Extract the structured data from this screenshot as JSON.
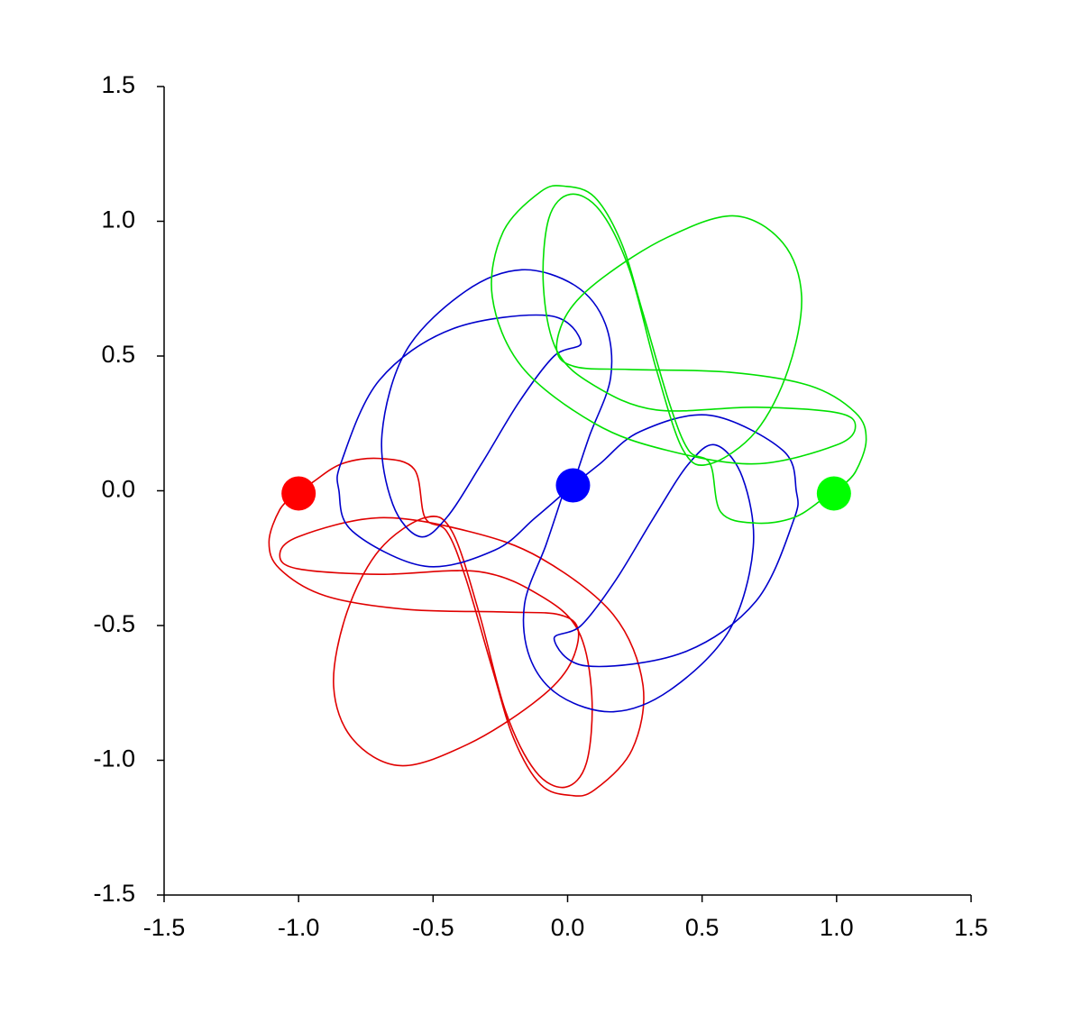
{
  "chart_data": {
    "type": "line",
    "xlim": [
      -1.5,
      1.5
    ],
    "ylim": [
      -1.5,
      1.5
    ],
    "xticks": [
      -1.5,
      {
        "value": -1,
        "label": "-1.0"
      },
      -0.5,
      {
        "value": 0,
        "label": "0.0"
      },
      0.5,
      {
        "value": 1,
        "label": "1.0"
      },
      1.5
    ],
    "yticks": [
      -1.5,
      {
        "value": -1,
        "label": "-1.0"
      },
      -0.5,
      {
        "value": 0,
        "label": "0.0"
      },
      0.5,
      {
        "value": 1,
        "label": "1.0"
      },
      1.5
    ],
    "series": [
      {
        "color": "#e00000",
        "x": [
          -1.01,
          -1.07,
          -1.11,
          -1.07,
          -0.9,
          -0.6,
          -0.23,
          -0.03,
          0.04,
          0.0,
          -0.13,
          -0.37,
          -0.62,
          -0.8,
          -0.87,
          -0.82,
          -0.7,
          -0.53,
          -0.43,
          -0.33,
          -0.23,
          -0.12,
          -0.01,
          0.07,
          0.09,
          0.04,
          -0.1,
          -0.33,
          -0.7,
          -1.0,
          -1.07,
          -1.0,
          -0.7,
          -0.37,
          -0.1,
          0.17,
          0.28,
          0.24,
          0.1,
          0.01,
          -0.1,
          -0.2,
          -0.28,
          -0.38,
          -0.45,
          -0.53,
          -0.57,
          -0.7,
          -0.84,
          -0.95,
          -1.01
        ],
        "values": [
          -0.01,
          -0.07,
          -0.19,
          -0.29,
          -0.39,
          -0.44,
          -0.45,
          -0.46,
          -0.52,
          -0.66,
          -0.79,
          -0.94,
          -1.02,
          -0.92,
          -0.72,
          -0.45,
          -0.22,
          -0.1,
          -0.15,
          -0.45,
          -0.82,
          -1.04,
          -1.1,
          -1.01,
          -0.76,
          -0.52,
          -0.39,
          -0.3,
          -0.31,
          -0.29,
          -0.24,
          -0.17,
          -0.1,
          -0.15,
          -0.25,
          -0.46,
          -0.72,
          -0.96,
          -1.11,
          -1.13,
          -1.09,
          -0.92,
          -0.66,
          -0.32,
          -0.15,
          -0.1,
          0.08,
          0.12,
          0.1,
          0.03,
          -0.01
        ]
      },
      {
        "color": "#0000cc",
        "x": [
          0.02,
          0.08,
          0.16,
          0.14,
          0.03,
          -0.17,
          -0.38,
          -0.6,
          -0.69,
          -0.65,
          -0.55,
          -0.45,
          -0.32,
          -0.18,
          -0.05,
          0.05,
          -0.07,
          -0.43,
          -0.7,
          -0.84,
          -0.85,
          -0.8,
          -0.53,
          -0.27,
          -0.12,
          0.02,
          0.12,
          0.27,
          0.53,
          0.8,
          0.85,
          0.84,
          0.7,
          0.43,
          0.07,
          -0.05,
          0.05,
          0.18,
          0.32,
          0.45,
          0.55,
          0.65,
          0.69,
          0.6,
          0.38,
          0.17,
          -0.03,
          -0.14,
          -0.16,
          -0.08,
          -0.02
        ],
        "values": [
          0.02,
          0.2,
          0.42,
          0.62,
          0.76,
          0.82,
          0.74,
          0.52,
          0.21,
          -0.05,
          -0.17,
          -0.1,
          0.1,
          0.33,
          0.5,
          0.55,
          0.65,
          0.6,
          0.41,
          0.11,
          0.0,
          -0.15,
          -0.28,
          -0.22,
          -0.1,
          0.02,
          0.1,
          0.22,
          0.28,
          0.15,
          0.0,
          -0.11,
          -0.41,
          -0.6,
          -0.65,
          -0.55,
          -0.5,
          -0.33,
          -0.1,
          0.1,
          0.17,
          0.05,
          -0.21,
          -0.52,
          -0.74,
          -0.82,
          -0.76,
          -0.62,
          -0.42,
          -0.2,
          -0.02
        ]
      },
      {
        "color": "#00e000",
        "x": [
          1.01,
          1.07,
          1.11,
          1.07,
          0.9,
          0.6,
          0.23,
          0.03,
          -0.04,
          0.0,
          0.13,
          0.37,
          0.62,
          0.8,
          0.87,
          0.82,
          0.7,
          0.53,
          0.43,
          0.33,
          0.23,
          0.12,
          0.01,
          -0.07,
          -0.09,
          -0.04,
          0.1,
          0.33,
          0.7,
          1.0,
          1.07,
          1.0,
          0.7,
          0.37,
          0.1,
          -0.17,
          -0.28,
          -0.24,
          -0.1,
          -0.01,
          0.1,
          0.2,
          0.28,
          0.38,
          0.45,
          0.53,
          0.57,
          0.7,
          0.84,
          0.95,
          1.01
        ],
        "values": [
          0.01,
          0.07,
          0.19,
          0.29,
          0.39,
          0.44,
          0.45,
          0.46,
          0.52,
          0.66,
          0.79,
          0.94,
          1.02,
          0.92,
          0.72,
          0.45,
          0.22,
          0.1,
          0.15,
          0.45,
          0.82,
          1.04,
          1.1,
          1.01,
          0.76,
          0.52,
          0.39,
          0.3,
          0.31,
          0.29,
          0.24,
          0.17,
          0.1,
          0.15,
          0.25,
          0.46,
          0.72,
          0.96,
          1.11,
          1.13,
          1.09,
          0.92,
          0.66,
          0.32,
          0.15,
          0.1,
          -0.08,
          -0.12,
          -0.1,
          -0.03,
          0.01
        ]
      }
    ],
    "markers": {
      "x": [
        -1.0,
        0.02,
        0.99
      ],
      "values": [
        -0.01,
        0.02,
        -0.01
      ],
      "colors": [
        "#ff0000",
        "#0000ff",
        "#00ff00"
      ]
    }
  }
}
